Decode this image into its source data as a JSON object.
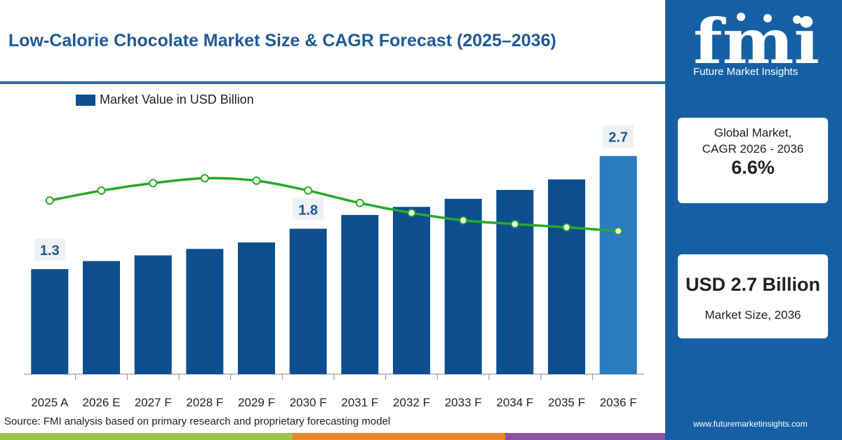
{
  "title": "Low-Calorie Chocolate Market Size & CAGR Forecast (2025–2036)",
  "source": "Source: FMI analysis based on primary research and proprietary forecasting model",
  "brand": {
    "logo_text": "fmi",
    "name": "Future Market Insights",
    "website": "www.futuremarketinsights.com"
  },
  "cards": {
    "cagr_label_line1": "Global Market,",
    "cagr_label_line2": "CAGR 2026 - 2036",
    "cagr_value": "6.6%",
    "size_value": "USD 2.7 Billion",
    "size_label": "Market Size, 2036"
  },
  "colors": {
    "bar": "#0d4e8f",
    "bar_highlight": "#2a7bc0",
    "line": "#2aa829",
    "panel": "#1560a5",
    "bottom_strip": [
      "#9cc64a",
      "#e8862a",
      "#8a55a0"
    ]
  },
  "chart_data": {
    "type": "bar",
    "legend": [
      "Market Value in USD Billion"
    ],
    "categories": [
      "2025 A",
      "2026 E",
      "2027 F",
      "2028 F",
      "2029 F",
      "2030 F",
      "2031 F",
      "2032 F",
      "2033 F",
      "2034 F",
      "2035 F",
      "2036 F"
    ],
    "series": [
      {
        "name": "Market Value in USD Billion",
        "values": [
          1.3,
          1.4,
          1.47,
          1.55,
          1.63,
          1.8,
          1.97,
          2.07,
          2.17,
          2.28,
          2.41,
          2.7
        ]
      }
    ],
    "trend_line": {
      "values": [
        7.0,
        7.4,
        7.7,
        7.9,
        7.8,
        7.4,
        6.9,
        6.5,
        6.2,
        6.05,
        5.92,
        5.77
      ]
    },
    "data_labels": [
      {
        "category": "2025 A",
        "text": "1.3"
      },
      {
        "category": "2030 F",
        "text": "1.8"
      },
      {
        "category": "2036 F",
        "text": "2.7"
      }
    ],
    "ylim": [
      0,
      3.07
    ],
    "trend_ylim": [
      0,
      10
    ]
  }
}
